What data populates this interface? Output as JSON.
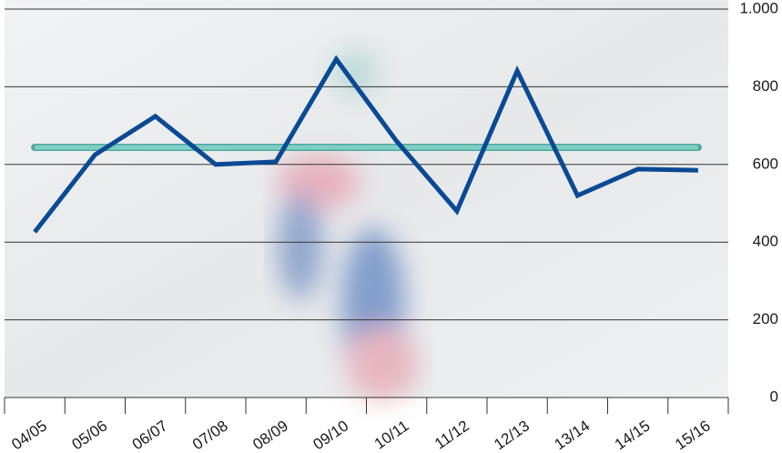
{
  "chart_data": {
    "type": "line",
    "categories": [
      "04/05",
      "05/06",
      "06/07",
      "07/08",
      "08/09",
      "09/10",
      "10/11",
      "11/12",
      "12/13",
      "13/14",
      "14/15",
      "15/16"
    ],
    "series": [
      {
        "color": "#0a4a94",
        "values": [
          426,
          625,
          724,
          600,
          607,
          871,
          660,
          480,
          841,
          520,
          588,
          585
        ]
      },
      {
        "color": "#7fcfc4",
        "values": [
          644,
          644,
          644,
          644,
          644,
          644,
          644,
          644,
          644,
          644,
          644,
          644
        ]
      }
    ],
    "ylim": [
      0,
      1000
    ],
    "yticks": [
      0,
      200,
      400,
      600,
      800,
      {
        "value": 1000,
        "label": "1.000"
      }
    ],
    "grid": true
  }
}
